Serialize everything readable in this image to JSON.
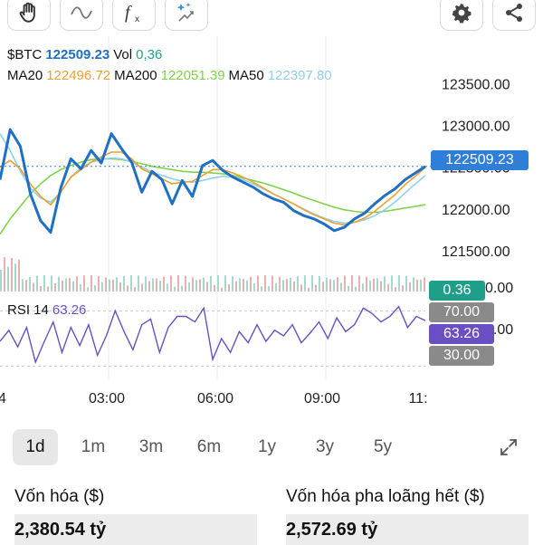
{
  "toolbar": {
    "icons": [
      "hand-icon",
      "wave-line-icon",
      "function-icon",
      "magic-sparkle-icon",
      "gear-icon",
      "share-icon"
    ]
  },
  "legend": {
    "symbol": "$BTC",
    "price": "122509.23",
    "vol_label": "Vol",
    "vol_value": "0,36",
    "ma20_label": "MA20",
    "ma20_value": "122496.72",
    "ma200_label": "MA200",
    "ma200_value": "122051.39",
    "ma50_label": "MA50",
    "ma50_value": "122397.80",
    "rsi_label": "RSI 14",
    "rsi_value": "63.26"
  },
  "price_tag": "122509.23",
  "volume_tag": "0.36",
  "rsi_tags": {
    "upper": "70.00",
    "current": "63.26",
    "lower": "30.00"
  },
  "partial_axis_labels": {
    "volume": "0.00",
    "rsi": "0.00"
  },
  "colors": {
    "price": "#1f6fc4",
    "ma20": "#f0a030",
    "ma200": "#7ed348",
    "ma50": "#8fd0f0",
    "rsi": "#6a4fc2",
    "volume_tag": "#1f9e8a",
    "price_tag": "#2f7fd8"
  },
  "chart_data": [
    {
      "type": "line",
      "x_ticks": [
        "03:00",
        "06:00",
        "09:00",
        "11:"
      ],
      "x_tick_partial_left": "4",
      "y_ticks": [
        123500.0,
        123000.0,
        122500.0,
        122000.0,
        121500.0
      ],
      "ylim": [
        121250,
        123850
      ],
      "series": [
        {
          "name": "$BTC",
          "values": [
            122350,
            122950,
            122750,
            122180,
            121860,
            121720,
            122250,
            122600,
            122480,
            122700,
            122550,
            122900,
            122720,
            122560,
            122200,
            122450,
            122350,
            122060,
            122340,
            122150,
            122520,
            122580,
            122460,
            122380,
            122320,
            122260,
            122180,
            122120,
            122080,
            121980,
            121920,
            121880,
            121820,
            121740,
            121780,
            121880,
            121950,
            122060,
            122160,
            122240,
            122350,
            122430,
            122509
          ]
        },
        {
          "name": "MA20",
          "values": [
            122500,
            122580,
            122480,
            122300,
            122150,
            122050,
            122200,
            122380,
            122470,
            122560,
            122620,
            122680,
            122680,
            122600,
            122480,
            122420,
            122360,
            122300,
            122320,
            122330,
            122400,
            122470,
            122470,
            122430,
            122380,
            122320,
            122250,
            122180,
            122120,
            122060,
            121990,
            121930,
            121880,
            121830,
            121810,
            121840,
            121890,
            121970,
            122070,
            122170,
            122290,
            122390,
            122497
          ]
        },
        {
          "name": "MA200",
          "values": [
            121700,
            121880,
            122030,
            122180,
            122300,
            122400,
            122470,
            122520,
            122560,
            122590,
            122600,
            122600,
            122590,
            122570,
            122540,
            122510,
            122490,
            122470,
            122450,
            122440,
            122440,
            122430,
            122420,
            122400,
            122370,
            122340,
            122310,
            122270,
            122230,
            122190,
            122140,
            122100,
            122060,
            122020,
            121990,
            121970,
            121960,
            121960,
            121970,
            121990,
            122010,
            122030,
            122051
          ]
        },
        {
          "name": "MA50",
          "values": [
            122900,
            122700,
            122450,
            122250,
            122130,
            122080,
            122200,
            122380,
            122490,
            122560,
            122590,
            122610,
            122600,
            122560,
            122500,
            122440,
            122400,
            122360,
            122330,
            122320,
            122340,
            122370,
            122390,
            122380,
            122350,
            122300,
            122240,
            122180,
            122120,
            122060,
            122000,
            121940,
            121890,
            121850,
            121830,
            121840,
            121870,
            121920,
            121990,
            122080,
            122190,
            122300,
            122398
          ]
        }
      ]
    },
    {
      "type": "line",
      "title": "RSI 14",
      "ylim": [
        20,
        80
      ],
      "reference_lines": [
        70,
        30
      ],
      "series": [
        {
          "name": "RSI 14",
          "values": [
            48,
            56,
            44,
            58,
            33,
            48,
            62,
            40,
            58,
            45,
            60,
            38,
            52,
            70,
            55,
            42,
            60,
            64,
            40,
            58,
            66,
            66,
            62,
            72,
            35,
            50,
            40,
            55,
            47,
            60,
            48,
            56,
            52,
            60,
            47,
            54,
            62,
            50,
            65,
            55,
            60,
            72,
            68,
            62,
            66,
            73,
            58,
            66,
            63
          ]
        }
      ]
    }
  ],
  "timeframes": [
    "1d",
    "1m",
    "3m",
    "6m",
    "1y",
    "3y",
    "5y"
  ],
  "active_timeframe": "1d",
  "stats": {
    "cap_label": "Vốn hóa ($)",
    "cap_value": "2,380.54 tỷ",
    "fdv_label": "Vốn hóa pha loãng hết ($)",
    "fdv_value": "2,572.69 tỷ"
  }
}
